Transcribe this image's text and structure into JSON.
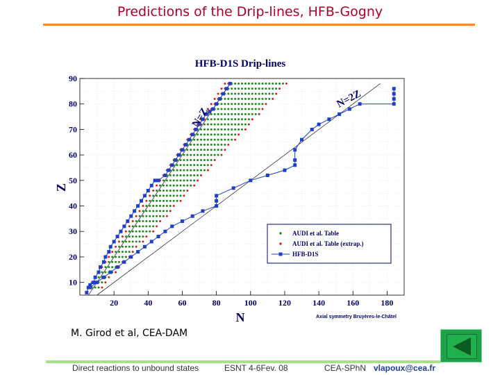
{
  "slide": {
    "title": "Predictions of the Drip-lines, HFB-Gogny",
    "credit": "M. Girod et al, CEA-DAM",
    "footer": {
      "left": "Direct reactions to unbound states",
      "mid": "ESNT 4-6Fev. 08",
      "right": "CEA-SPhN",
      "email": "vlapoux@cea.fr"
    },
    "nav_icon": "back-triangle-icon",
    "colors": {
      "title": "#b0002a",
      "title_rule": "#f08a3a",
      "bottom_rule": "#a8e08a",
      "nav_button": "#1ea24a"
    }
  },
  "chart_data": {
    "type": "scatter",
    "title": "HFB-D1S Drip-lines",
    "xlabel": "N",
    "ylabel": "Z",
    "xlim": [
      0,
      190
    ],
    "ylim": [
      5,
      90
    ],
    "xticks": [
      20,
      40,
      60,
      80,
      100,
      120,
      140,
      160,
      180
    ],
    "yticks": [
      10,
      20,
      30,
      40,
      50,
      60,
      70,
      80,
      90
    ],
    "grid": true,
    "legend_position": "lower-right",
    "annotations": {
      "n_eq_z": "N=Z",
      "n_eq_2z": "N=2Z",
      "note": "Axial symmetry Bruyères-le-Châtel"
    },
    "reference_lines": [
      {
        "label": "N=Z",
        "from": [
          0,
          0
        ],
        "to": [
          88,
          88
        ]
      },
      {
        "label": "N=2Z",
        "from": [
          0,
          0
        ],
        "to": [
          176,
          88
        ]
      }
    ],
    "series": [
      {
        "name": "AUDI et al. Table",
        "marker": "dot",
        "color": "#1e8a1e",
        "region": {
          "z_min": 8,
          "z_max": 88,
          "n_min_offset": -3,
          "n_max_ratio": 1.35,
          "n_max_offset": 2
        }
      },
      {
        "name": "AUDI et al. Table (extrap.)",
        "marker": "dot",
        "color": "#d42020",
        "region": {
          "band": "edges"
        }
      },
      {
        "name": "HFB-D1S",
        "marker": "square",
        "color": "#1f3fc8",
        "proton_dripline": [
          [
            4,
            6
          ],
          [
            5,
            8
          ],
          [
            6,
            9
          ],
          [
            8,
            10
          ],
          [
            9,
            12
          ],
          [
            11,
            14
          ],
          [
            12,
            16
          ],
          [
            14,
            18
          ],
          [
            15,
            20
          ],
          [
            17,
            22
          ],
          [
            18,
            24
          ],
          [
            20,
            26
          ],
          [
            22,
            28
          ],
          [
            24,
            30
          ],
          [
            26,
            32
          ],
          [
            28,
            34
          ],
          [
            30,
            36
          ],
          [
            32,
            38
          ],
          [
            34,
            40
          ],
          [
            36,
            42
          ],
          [
            38,
            44
          ],
          [
            40,
            46
          ],
          [
            42,
            48
          ],
          [
            44,
            50
          ],
          [
            46,
            50
          ],
          [
            50,
            52
          ],
          [
            52,
            54
          ],
          [
            54,
            56
          ],
          [
            56,
            58
          ],
          [
            58,
            60
          ],
          [
            60,
            62
          ],
          [
            62,
            64
          ],
          [
            64,
            66
          ],
          [
            66,
            68
          ],
          [
            68,
            70
          ],
          [
            70,
            72
          ],
          [
            72,
            74
          ],
          [
            74,
            76
          ],
          [
            76,
            77
          ],
          [
            78,
            78
          ],
          [
            80,
            80
          ],
          [
            82,
            82
          ],
          [
            84,
            84
          ],
          [
            86,
            86
          ],
          [
            88,
            88
          ]
        ],
        "neutron_dripline": [
          [
            6,
            8
          ],
          [
            10,
            10
          ],
          [
            14,
            12
          ],
          [
            18,
            14
          ],
          [
            22,
            16
          ],
          [
            26,
            18
          ],
          [
            30,
            20
          ],
          [
            34,
            22
          ],
          [
            38,
            24
          ],
          [
            42,
            26
          ],
          [
            46,
            28
          ],
          [
            50,
            30
          ],
          [
            54,
            32
          ],
          [
            60,
            34
          ],
          [
            66,
            36
          ],
          [
            72,
            38
          ],
          [
            80,
            40
          ],
          [
            80,
            42
          ],
          [
            80,
            44
          ],
          [
            90,
            47
          ],
          [
            100,
            50
          ],
          [
            110,
            52
          ],
          [
            120,
            54
          ],
          [
            126,
            56
          ],
          [
            126,
            58
          ],
          [
            126,
            62
          ],
          [
            130,
            66
          ],
          [
            136,
            70
          ],
          [
            140,
            72
          ],
          [
            146,
            74
          ],
          [
            152,
            76
          ],
          [
            158,
            78
          ],
          [
            164,
            80
          ],
          [
            184,
            80
          ],
          [
            184,
            82
          ],
          [
            184,
            84
          ],
          [
            184,
            86
          ]
        ]
      }
    ]
  }
}
